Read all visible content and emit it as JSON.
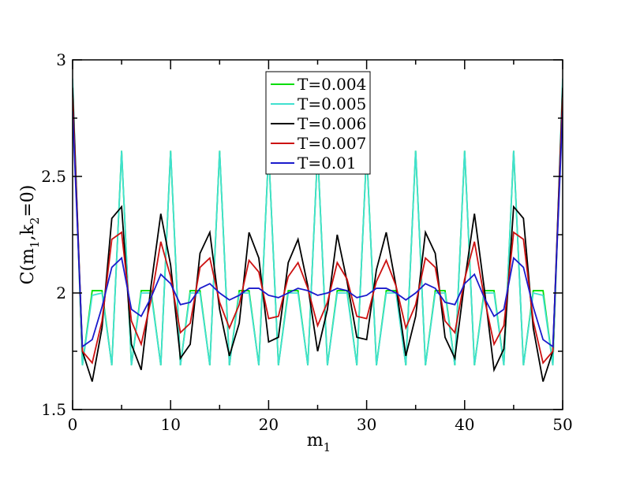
{
  "chart_data": {
    "type": "line",
    "xlabel": "m",
    "xlabel_sub": "1",
    "ylabel_parts": {
      "a": "C(m",
      "sub1": "1",
      "b": ",k",
      "sub2": "2",
      "c": "=0)"
    },
    "xlim": [
      0,
      50
    ],
    "ylim": [
      1.5,
      3
    ],
    "xticks": [
      0,
      10,
      20,
      30,
      40,
      50
    ],
    "xtick_labels": [
      "0",
      "10",
      "20",
      "30",
      "40",
      "50"
    ],
    "yticks": [
      1.5,
      2,
      2.5,
      3
    ],
    "ytick_labels": [
      "1.5",
      "2",
      "2.5",
      "3"
    ],
    "grid": false,
    "legend_position": "top-center",
    "x": [
      0,
      1,
      2,
      3,
      4,
      5,
      6,
      7,
      8,
      9,
      10,
      11,
      12,
      13,
      14,
      15,
      16,
      17,
      18,
      19,
      20,
      21,
      22,
      23,
      24,
      25,
      26,
      27,
      28,
      29,
      30,
      31,
      32,
      33,
      34,
      35,
      36,
      37,
      38,
      39,
      40,
      41,
      42,
      43,
      44,
      45,
      46,
      47,
      48,
      49,
      50
    ],
    "series": [
      {
        "name": "T=0.004",
        "color": "#00dd00",
        "values": [
          2.9,
          1.69,
          2.01,
          2.01,
          1.69,
          2.61,
          1.69,
          2.01,
          2.01,
          1.69,
          2.61,
          1.69,
          2.01,
          2.01,
          1.69,
          2.61,
          1.69,
          2.01,
          2.01,
          1.69,
          2.61,
          1.69,
          2.01,
          2.01,
          1.69,
          2.61,
          1.69,
          2.01,
          2.01,
          1.69,
          2.61,
          1.69,
          2.01,
          2.01,
          1.69,
          2.61,
          1.69,
          2.01,
          2.01,
          1.69,
          2.61,
          1.69,
          2.01,
          2.01,
          1.69,
          2.61,
          1.69,
          2.01,
          2.01,
          1.69,
          2.9
        ]
      },
      {
        "name": "T=0.005",
        "color": "#40e0d0",
        "values": [
          2.92,
          1.69,
          1.99,
          2.0,
          1.69,
          2.61,
          1.69,
          2.0,
          2.0,
          1.69,
          2.61,
          1.69,
          2.0,
          2.0,
          1.69,
          2.61,
          1.69,
          2.0,
          2.0,
          1.69,
          2.61,
          1.69,
          2.0,
          2.0,
          1.69,
          2.61,
          1.69,
          2.0,
          2.0,
          1.69,
          2.61,
          1.69,
          2.0,
          2.0,
          1.69,
          2.61,
          1.69,
          2.0,
          2.0,
          1.69,
          2.61,
          1.69,
          2.0,
          2.0,
          1.69,
          2.61,
          1.69,
          2.0,
          1.99,
          1.69,
          2.92
        ]
      },
      {
        "name": "T=0.006",
        "color": "#000000",
        "values": [
          2.88,
          1.75,
          1.62,
          1.85,
          2.32,
          2.37,
          1.78,
          1.67,
          2.03,
          2.34,
          2.12,
          1.72,
          1.78,
          2.17,
          2.26,
          1.93,
          1.73,
          1.87,
          2.26,
          2.15,
          1.79,
          1.81,
          2.13,
          2.23,
          2.03,
          1.75,
          1.93,
          2.25,
          2.05,
          1.81,
          1.8,
          2.1,
          2.26,
          2.03,
          1.73,
          1.9,
          2.26,
          2.17,
          1.81,
          1.72,
          2.05,
          2.34,
          2.02,
          1.67,
          1.76,
          2.37,
          2.32,
          1.85,
          1.62,
          1.75,
          2.88
        ]
      },
      {
        "name": "T=0.007",
        "color": "#cc1111",
        "values": [
          2.84,
          1.75,
          1.7,
          1.88,
          2.23,
          2.26,
          1.88,
          1.78,
          1.97,
          2.22,
          2.07,
          1.83,
          1.87,
          2.11,
          2.15,
          1.96,
          1.85,
          1.95,
          2.14,
          2.09,
          1.89,
          1.9,
          2.07,
          2.13,
          2.02,
          1.86,
          1.96,
          2.13,
          2.06,
          1.9,
          1.89,
          2.05,
          2.14,
          2.03,
          1.85,
          1.95,
          2.15,
          2.11,
          1.88,
          1.83,
          2.06,
          2.22,
          1.98,
          1.78,
          1.86,
          2.26,
          2.23,
          1.88,
          1.7,
          1.75,
          2.84
        ]
      },
      {
        "name": "T=0.01",
        "color": "#1a1acc",
        "values": [
          2.78,
          1.77,
          1.8,
          1.94,
          2.11,
          2.15,
          1.93,
          1.9,
          1.98,
          2.08,
          2.04,
          1.95,
          1.96,
          2.02,
          2.04,
          2.0,
          1.97,
          1.99,
          2.02,
          2.02,
          1.99,
          1.98,
          2.0,
          2.02,
          2.01,
          1.99,
          2.0,
          2.02,
          2.01,
          1.98,
          1.99,
          2.02,
          2.02,
          2.0,
          1.97,
          2.0,
          2.04,
          2.02,
          1.96,
          1.95,
          2.04,
          2.08,
          1.98,
          1.9,
          1.93,
          2.15,
          2.11,
          1.94,
          1.8,
          1.77,
          2.78
        ]
      }
    ]
  }
}
